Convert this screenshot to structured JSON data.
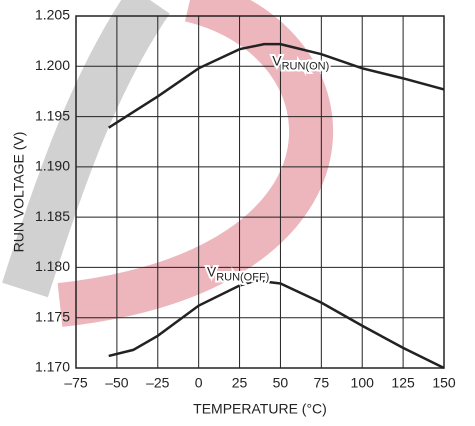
{
  "chart_data": {
    "type": "line",
    "x_label": "TEMPERATURE (°C)",
    "y_label": "RUN VOLTAGE (V)",
    "xlim": [
      -75,
      150
    ],
    "xticks": [
      {
        "value": -75,
        "label": "–75"
      },
      {
        "value": -50,
        "label": "–50"
      },
      {
        "value": -25,
        "label": "–25"
      },
      0,
      25,
      50,
      75,
      100,
      125,
      150
    ],
    "ylim": [
      1.17,
      1.205
    ],
    "yticks": [
      {
        "value": 1.17,
        "label": "1.170"
      },
      1.175,
      {
        "value": 1.18,
        "label": "1.180"
      },
      1.185,
      {
        "value": 1.19,
        "label": "1.190"
      },
      1.195,
      {
        "value": 1.2,
        "label": "1.200"
      },
      1.205
    ],
    "grid": true,
    "series": [
      {
        "color": "#222222",
        "x": [
          -55,
          -25,
          0,
          25,
          40,
          50,
          75,
          100,
          125,
          150
        ],
        "values": [
          1.1939,
          1.197,
          1.1998,
          1.2017,
          1.2022,
          1.2022,
          1.2012,
          1.1998,
          1.1988,
          1.1977
        ]
      },
      {
        "color": "#222222",
        "x": [
          -55,
          -40,
          -25,
          0,
          25,
          35,
          50,
          75,
          100,
          125,
          150
        ],
        "values": [
          1.1712,
          1.1718,
          1.1732,
          1.1762,
          1.1782,
          1.1787,
          1.1784,
          1.1765,
          1.1742,
          1.172,
          1.17
        ]
      }
    ],
    "annotations": [
      {
        "text": "V",
        "subscript": "RUN(ON)",
        "x": 45,
        "y": 1.2005
      },
      {
        "text": "V",
        "subscript": "RUN(OFF)",
        "x": 5,
        "y": 1.1795
      }
    ]
  }
}
